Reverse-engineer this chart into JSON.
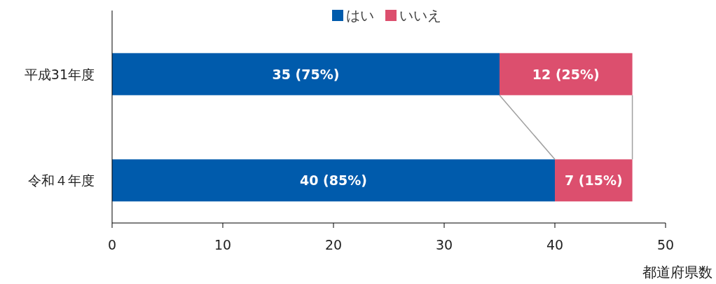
{
  "chart_data": {
    "type": "bar",
    "orientation": "horizontal",
    "stacked": true,
    "categories": [
      "平成31年度",
      "令和４年度"
    ],
    "series": [
      {
        "name": "はい",
        "color": "#005bac",
        "values": [
          35,
          40
        ],
        "value_labels": [
          "35 (75%)",
          "40 (85%)"
        ]
      },
      {
        "name": "いいえ",
        "color": "#dc4f6e",
        "values": [
          12,
          7
        ],
        "value_labels": [
          "12 (25%)",
          "7 (15%)"
        ]
      }
    ],
    "xlim": [
      0,
      50
    ],
    "xticks": [
      0,
      10,
      20,
      30,
      40,
      50
    ],
    "xlabel": "都道府県数",
    "legend": "top",
    "grid": false
  }
}
